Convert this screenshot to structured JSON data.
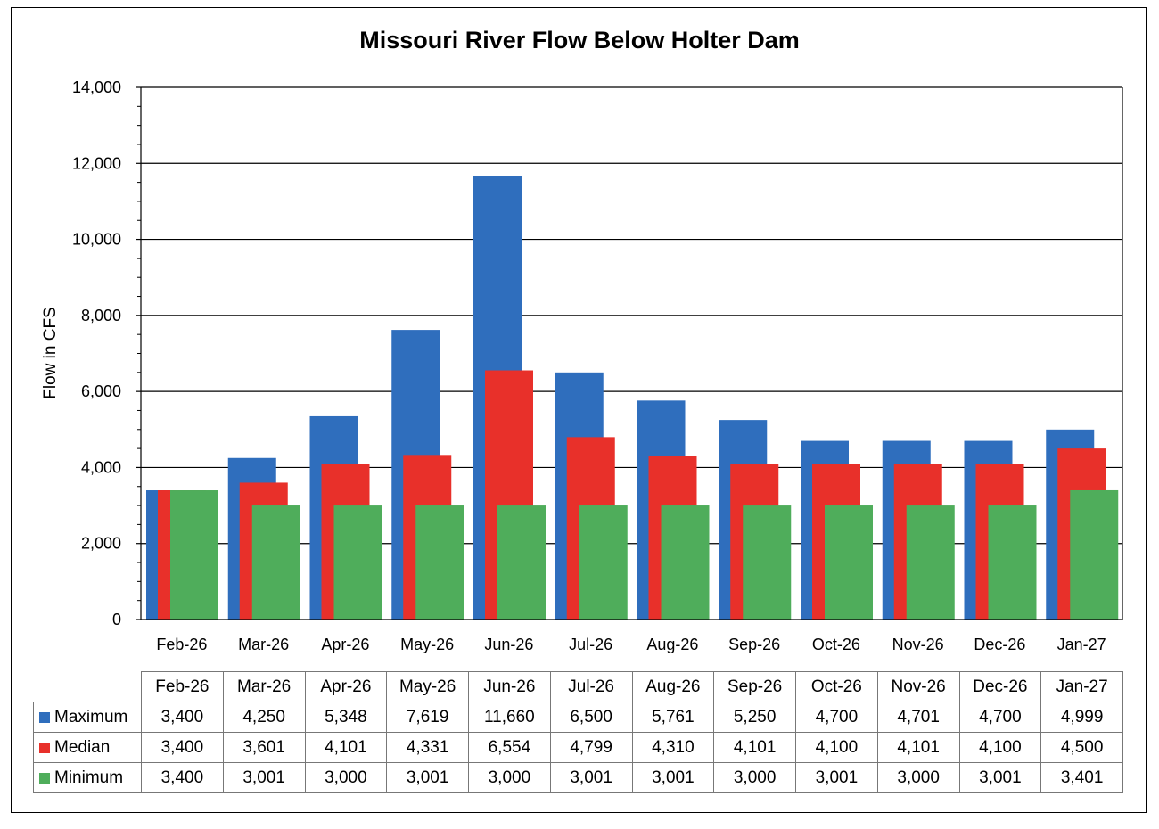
{
  "chart_data": {
    "type": "bar",
    "title": "Missouri River Flow Below Holter Dam",
    "ylabel": "Flow in CFS",
    "xlabel": "",
    "ylim": [
      0,
      14000
    ],
    "yticks": [
      "0",
      "2,000",
      "4,000",
      "6,000",
      "8,000",
      "10,000",
      "12,000",
      "14,000"
    ],
    "grid": true,
    "legend": "data table",
    "categories": [
      "Feb-26",
      "Mar-26",
      "Apr-26",
      "May-26",
      "Jun-26",
      "Jul-26",
      "Aug-26",
      "Sep-26",
      "Oct-26",
      "Nov-26",
      "Dec-26",
      "Jan-27"
    ],
    "series": [
      {
        "name": "Maximum",
        "color": "#2f6ebd",
        "values": [
          3400,
          4250,
          5348,
          7619,
          11660,
          6500,
          5761,
          5250,
          4700,
          4701,
          4700,
          4999
        ],
        "labels": [
          "3,400",
          "4,250",
          "5,348",
          "7,619",
          "11,660",
          "6,500",
          "5,761",
          "5,250",
          "4,700",
          "4,701",
          "4,700",
          "4,999"
        ]
      },
      {
        "name": "Median",
        "color": "#e8302a",
        "values": [
          3400,
          3601,
          4101,
          4331,
          6554,
          4799,
          4310,
          4101,
          4100,
          4101,
          4100,
          4500
        ],
        "labels": [
          "3,400",
          "3,601",
          "4,101",
          "4,331",
          "6,554",
          "4,799",
          "4,310",
          "4,101",
          "4,100",
          "4,101",
          "4,100",
          "4,500"
        ]
      },
      {
        "name": "Minimum",
        "color": "#4fad5b",
        "values": [
          3400,
          3001,
          3000,
          3001,
          3000,
          3001,
          3001,
          3000,
          3001,
          3000,
          3001,
          3401
        ],
        "labels": [
          "3,400",
          "3,001",
          "3,000",
          "3,001",
          "3,000",
          "3,001",
          "3,001",
          "3,000",
          "3,001",
          "3,000",
          "3,001",
          "3,401"
        ]
      }
    ]
  }
}
